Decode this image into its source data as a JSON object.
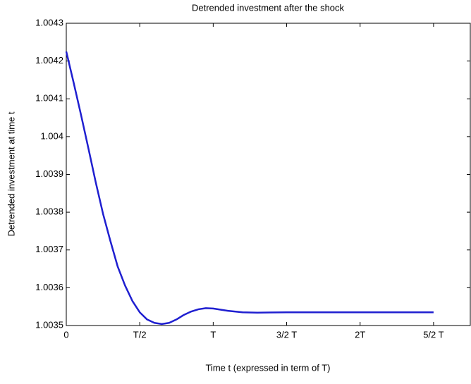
{
  "chart_data": {
    "type": "line",
    "title": "Detrended investment after the shock",
    "xlabel": "Time t (expressed in term of T)",
    "ylabel": "Detrended investment at time t",
    "x": [
      0,
      0.05,
      0.1,
      0.15,
      0.2,
      0.25,
      0.3,
      0.35,
      0.4,
      0.45,
      0.5,
      0.55,
      0.6,
      0.65,
      0.7,
      0.75,
      0.8,
      0.85,
      0.9,
      0.95,
      1.0,
      1.1,
      1.2,
      1.3,
      1.5,
      1.75,
      2.0,
      2.25,
      2.5
    ],
    "series": [
      {
        "color": "#1f1fd0",
        "values": [
          1.004225,
          1.004143,
          1.004058,
          1.00397,
          1.00388,
          1.003796,
          1.003724,
          1.003656,
          1.003606,
          1.003565,
          1.003535,
          1.003516,
          1.003507,
          1.003504,
          1.003507,
          1.003516,
          1.003528,
          1.003537,
          1.003543,
          1.003546,
          1.003545,
          1.003539,
          1.003535,
          1.003534,
          1.003535,
          1.003535,
          1.003535,
          1.003535,
          1.003535
        ]
      }
    ],
    "xlim": [
      0,
      2.75
    ],
    "xticks": [
      0,
      {
        "value": 0.5,
        "label": "T/2"
      },
      {
        "value": 1,
        "label": "T"
      },
      {
        "value": 1.5,
        "label": "3/2 T"
      },
      {
        "value": 2,
        "label": "2T"
      },
      {
        "value": 2.5,
        "label": "5/2 T"
      }
    ],
    "ylim": [
      1.0035,
      1.0043
    ],
    "yticks": [
      1.0035,
      1.0036,
      1.0037,
      1.0038,
      1.0039,
      1.004,
      1.0041,
      1.0042,
      1.0043
    ],
    "grid": false
  }
}
